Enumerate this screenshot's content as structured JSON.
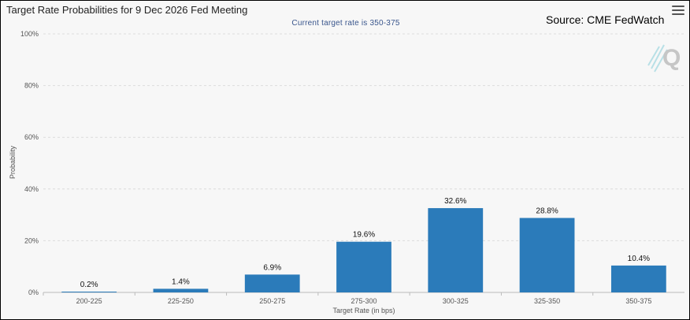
{
  "chart_data": {
    "type": "bar",
    "title": "Target Rate Probabilities for 9 Dec 2026 Fed Meeting",
    "subtitle": "Current target rate is 350-375",
    "xlabel": "Target Rate (in bps)",
    "ylabel": "Probability",
    "ylim": [
      0,
      100
    ],
    "yticks": [
      "0%",
      "20%",
      "40%",
      "60%",
      "80%",
      "100%"
    ],
    "categories": [
      "200-225",
      "225-250",
      "250-275",
      "275-300",
      "300-325",
      "325-350",
      "350-375"
    ],
    "values": [
      0.2,
      1.4,
      6.9,
      19.6,
      32.6,
      28.8,
      10.4
    ],
    "data_labels": [
      "0.2%",
      "1.4%",
      "6.9%",
      "19.6%",
      "32.6%",
      "28.8%",
      "10.4%"
    ],
    "bar_color": "#2b7bba",
    "grid": "horizontal dashed",
    "legend": "none"
  },
  "annotation": {
    "source": "Source: CME FedWatch"
  },
  "icons": {
    "menu": "hamburger-menu-icon",
    "logo": "q-logo-icon"
  },
  "colors": {
    "background": "#f7f7f7",
    "bar": "#2b7bba",
    "subtitle": "#39558c",
    "grid": "#dcdcdc"
  }
}
